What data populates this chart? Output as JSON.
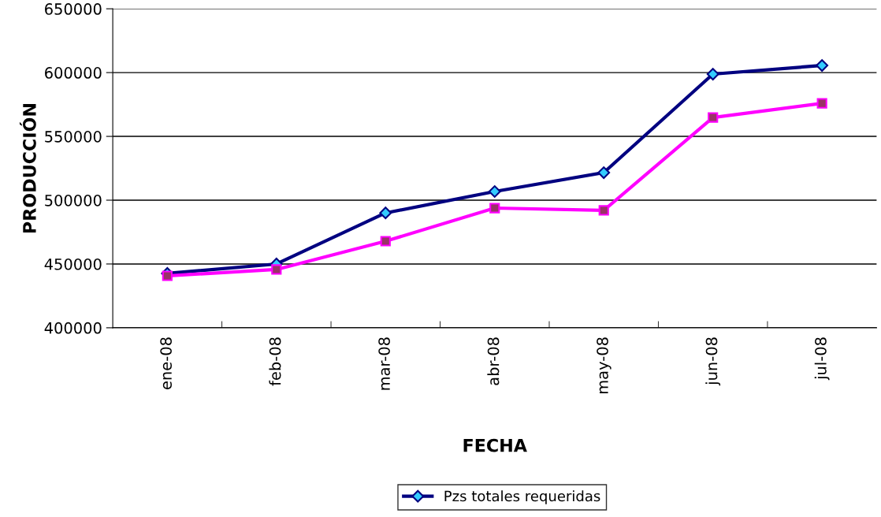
{
  "chart_data": {
    "type": "line",
    "xlabel": "FECHA",
    "ylabel": "PRODUCCIÓN",
    "categories": [
      "ene-08",
      "feb-08",
      "mar-08",
      "abr-08",
      "may-08",
      "jun-08",
      "jul-08"
    ],
    "series": [
      {
        "name": "Pzs totales requeridas",
        "color": "#000080",
        "marker": "diamond",
        "values": [
          442600,
          450000,
          490000,
          506800,
          521600,
          598800,
          605600
        ]
      },
      {
        "color": "#ff00ff",
        "marker": "square",
        "values": [
          440700,
          445700,
          467900,
          493800,
          492000,
          564800,
          575900
        ]
      }
    ],
    "ylim": [
      400000,
      650000
    ],
    "yticks": [
      400000,
      450000,
      500000,
      550000,
      600000,
      650000
    ],
    "grid": "y",
    "legend": "bottom",
    "line_style": "solid"
  }
}
